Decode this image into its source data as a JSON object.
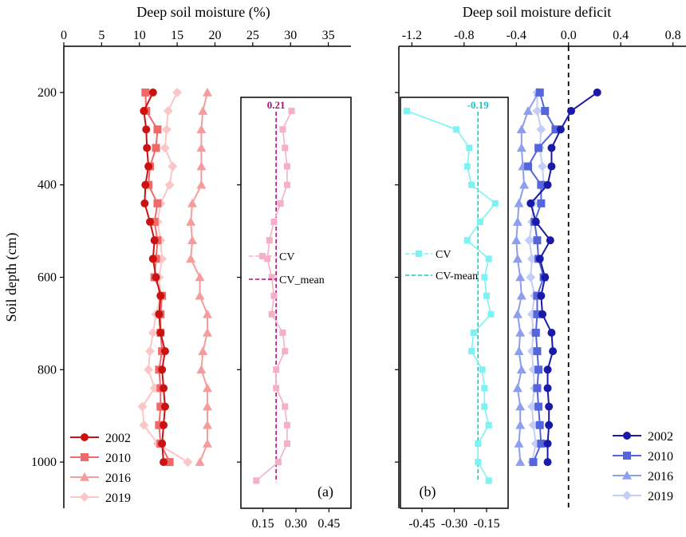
{
  "chart_data": [
    {
      "type": "line",
      "panel_label": "(a)",
      "xlabel": "Deep soil moisture (%)",
      "x_ticks": [
        "0",
        "5",
        "10",
        "15",
        "20",
        "25",
        "30",
        "35"
      ],
      "xlim": [
        0,
        38
      ],
      "ylabel": "Soil depth (cm)",
      "y_ticks": [
        "200",
        "400",
        "600",
        "800",
        "1000"
      ],
      "ylim": [
        1100,
        100
      ],
      "depth": [
        200,
        240,
        280,
        320,
        360,
        400,
        440,
        480,
        520,
        560,
        600,
        640,
        680,
        720,
        760,
        800,
        840,
        880,
        920,
        960,
        1000
      ],
      "series": [
        {
          "name": "2002",
          "color": "#cc1111",
          "marker": "circle",
          "values": [
            11.8,
            10.6,
            10.9,
            11.0,
            11.2,
            10.8,
            10.7,
            11.4,
            12.0,
            11.8,
            12.2,
            12.8,
            12.6,
            12.8,
            13.4,
            13.0,
            13.2,
            13.4,
            13.2,
            13.0,
            13.2
          ]
        },
        {
          "name": "2010",
          "color": "#f06868",
          "marker": "square",
          "values": [
            10.8,
            10.9,
            12.4,
            12.2,
            11.4,
            11.2,
            12.4,
            12.0,
            12.4,
            12.2,
            12.0,
            13.0,
            12.8,
            12.8,
            13.0,
            12.6,
            12.8,
            12.8,
            12.6,
            12.8,
            14.0
          ]
        },
        {
          "name": "2016",
          "color": "#f59c9c",
          "marker": "triangle",
          "values": [
            19.0,
            18.4,
            18.2,
            18.2,
            18.2,
            18.2,
            17.0,
            16.8,
            17.0,
            16.8,
            18.0,
            18.0,
            19.0,
            19.0,
            18.4,
            18.2,
            19.0,
            19.0,
            19.0,
            19.0,
            18.0
          ]
        },
        {
          "name": "2019",
          "color": "#fbc6c6",
          "marker": "diamond",
          "values": [
            15.0,
            13.8,
            13.6,
            13.4,
            14.4,
            14.0,
            12.8,
            12.4,
            12.8,
            13.0,
            12.6,
            12.8,
            12.2,
            11.8,
            11.4,
            11.2,
            12.0,
            10.4,
            10.6,
            12.4,
            16.4
          ]
        }
      ],
      "inset": {
        "legend": [
          "CV",
          "CV_mean"
        ],
        "x_ticks": [
          "0.15",
          "0.30",
          "0.45"
        ],
        "xlim": [
          0.05,
          0.55
        ],
        "cv_mean": 0.21,
        "cv_mean_label": "0.21",
        "cv_color": "#f5b0c8",
        "mean_color": "#a3166e",
        "depth": [
          240,
          280,
          320,
          360,
          400,
          440,
          480,
          520,
          560,
          600,
          640,
          680,
          720,
          760,
          800,
          840,
          880,
          920,
          960,
          1000,
          1040
        ],
        "values": [
          0.28,
          0.24,
          0.25,
          0.26,
          0.26,
          0.23,
          0.2,
          0.18,
          0.17,
          0.19,
          0.2,
          0.19,
          0.24,
          0.25,
          0.21,
          0.21,
          0.25,
          0.26,
          0.26,
          0.22,
          0.12
        ]
      },
      "legend_position": "bottom-left"
    },
    {
      "type": "line",
      "panel_label": "(b)",
      "xlabel": "Deep soil moisture deficit",
      "x_ticks": [
        "-1.2",
        "-0.8",
        "-0.4",
        "0.0",
        "0.4",
        "0.8"
      ],
      "xlim": [
        -1.3,
        0.9
      ],
      "reference_x": 0.0,
      "ylabel": "",
      "ylim": [
        1100,
        100
      ],
      "depth": [
        200,
        240,
        280,
        320,
        360,
        400,
        440,
        480,
        520,
        560,
        600,
        640,
        680,
        720,
        760,
        800,
        840,
        880,
        920,
        960,
        1000
      ],
      "series": [
        {
          "name": "2002",
          "color": "#1a1aa8",
          "marker": "circle",
          "values": [
            0.22,
            0.02,
            -0.06,
            -0.13,
            -0.13,
            -0.16,
            -0.29,
            -0.25,
            -0.14,
            -0.22,
            -0.18,
            -0.21,
            -0.2,
            -0.13,
            -0.12,
            -0.16,
            -0.16,
            -0.15,
            -0.15,
            -0.16,
            -0.16
          ]
        },
        {
          "name": "2010",
          "color": "#5566dd",
          "marker": "square",
          "values": [
            -0.22,
            -0.18,
            -0.1,
            -0.23,
            -0.31,
            -0.21,
            -0.21,
            -0.26,
            -0.24,
            -0.23,
            -0.19,
            -0.24,
            -0.24,
            -0.25,
            -0.24,
            -0.23,
            -0.24,
            -0.23,
            -0.22,
            -0.21,
            -0.27
          ]
        },
        {
          "name": "2016",
          "color": "#8d9eee",
          "marker": "triangle",
          "values": [
            -0.23,
            -0.31,
            -0.36,
            -0.36,
            -0.35,
            -0.34,
            -0.38,
            -0.39,
            -0.4,
            -0.39,
            -0.37,
            -0.36,
            -0.39,
            -0.37,
            -0.38,
            -0.36,
            -0.39,
            -0.37,
            -0.37,
            -0.38,
            -0.37
          ]
        },
        {
          "name": "2019",
          "color": "#c4cdf7",
          "marker": "diamond",
          "values": [
            -0.24,
            -0.24,
            -0.21,
            -0.22,
            -0.2,
            -0.19,
            -0.27,
            -0.28,
            -0.3,
            -0.28,
            -0.29,
            -0.26,
            -0.28,
            -0.27,
            -0.28,
            -0.27,
            -0.26,
            -0.28,
            -0.27,
            -0.25,
            -0.28
          ]
        }
      ],
      "inset": {
        "legend": [
          "CV",
          "CV-mean"
        ],
        "x_ticks": [
          "-0.45",
          "-0.30",
          "-0.15"
        ],
        "xlim": [
          -0.55,
          -0.05
        ],
        "cv_mean": -0.19,
        "cv_mean_label": "-0.19",
        "cv_color": "#7df2f2",
        "mean_color": "#1ec4c4",
        "depth": [
          240,
          280,
          320,
          360,
          400,
          440,
          480,
          520,
          560,
          600,
          640,
          680,
          720,
          760,
          800,
          840,
          880,
          920,
          960,
          1000,
          1040
        ],
        "values": [
          -0.52,
          -0.29,
          -0.23,
          -0.24,
          -0.22,
          -0.11,
          -0.18,
          -0.24,
          -0.14,
          -0.16,
          -0.15,
          -0.13,
          -0.21,
          -0.22,
          -0.17,
          -0.16,
          -0.16,
          -0.14,
          -0.19,
          -0.19,
          -0.14
        ]
      },
      "legend_position": "bottom-right"
    }
  ]
}
